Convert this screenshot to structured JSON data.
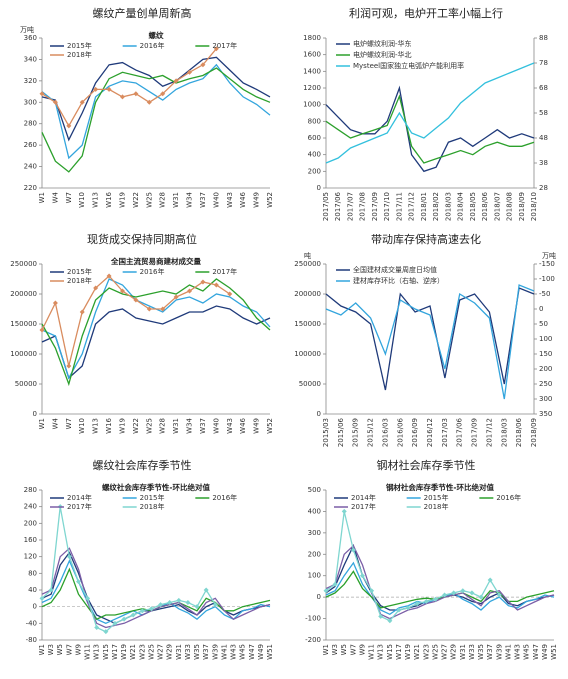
{
  "chart_data": [
    {
      "type": "line",
      "title": "螺纹产量创单周新高",
      "subtitle": "螺纹",
      "ylabel": "万吨",
      "legend": "upper center",
      "categories": [
        "W1",
        "W4",
        "W7",
        "W10",
        "W13",
        "W16",
        "W19",
        "W22",
        "W25",
        "W28",
        "W31",
        "W34",
        "W37",
        "W40",
        "W43",
        "W46",
        "W49",
        "W52"
      ],
      "ylim": [
        220,
        360
      ],
      "yticks": [
        220,
        240,
        260,
        280,
        300,
        320,
        340,
        360
      ],
      "series": [
        {
          "name": "2015年",
          "color": "#1f3a7a",
          "values": [
            305,
            302,
            265,
            290,
            318,
            335,
            337,
            330,
            325,
            315,
            320,
            330,
            340,
            342,
            330,
            318,
            312,
            305
          ]
        },
        {
          "name": "2016年",
          "color": "#33a5dd",
          "values": [
            310,
            300,
            248,
            260,
            305,
            315,
            320,
            318,
            310,
            302,
            312,
            318,
            322,
            335,
            318,
            305,
            298,
            288
          ]
        },
        {
          "name": "2017年",
          "color": "#2ca02c",
          "values": [
            272,
            245,
            235,
            250,
            300,
            322,
            328,
            325,
            322,
            325,
            318,
            322,
            325,
            332,
            322,
            312,
            305,
            300
          ]
        },
        {
          "name": "2018年",
          "color": "#d98c5f",
          "marker": "diamond",
          "values": [
            308,
            300,
            278,
            300,
            312,
            312,
            305,
            308,
            300,
            308,
            320,
            328,
            335,
            350,
            null,
            null,
            null,
            null
          ]
        }
      ]
    },
    {
      "type": "line",
      "title": "利润可观，电炉开工率小幅上行",
      "legend": "upper left",
      "categories": [
        "2017/05",
        "2017/06",
        "2017/07",
        "2017/08",
        "2017/09",
        "2017/10",
        "2017/11",
        "2017/12",
        "2018/01",
        "2018/02",
        "2018/03",
        "2018/04",
        "2018/05",
        "2018/06",
        "2018/07",
        "2018/08",
        "2018/09",
        "2018/10"
      ],
      "ylim": [
        0,
        1800
      ],
      "yticks": [
        0,
        200,
        400,
        600,
        800,
        1000,
        1200,
        1400,
        1600,
        1800
      ],
      "y2lim": [
        28,
        88
      ],
      "y2ticks": [
        28,
        38,
        48,
        58,
        68,
        78,
        88
      ],
      "series": [
        {
          "name": "电炉螺纹利润-华东",
          "color": "#1f3a7a",
          "values": [
            1000,
            850,
            700,
            650,
            650,
            800,
            1200,
            400,
            200,
            250,
            550,
            600,
            500,
            600,
            700,
            600,
            650,
            600
          ]
        },
        {
          "name": "电炉螺纹利润-华北",
          "color": "#2ca02c",
          "values": [
            800,
            700,
            600,
            650,
            700,
            750,
            1100,
            500,
            300,
            350,
            400,
            450,
            400,
            500,
            550,
            500,
            500,
            550
          ]
        },
        {
          "name": "Mysteel国家独立电弧炉产能利用率",
          "color": "#33c0dd",
          "axis": "y2",
          "values": [
            38,
            40,
            44,
            46,
            48,
            50,
            58,
            50,
            48,
            52,
            56,
            62,
            66,
            70,
            72,
            74,
            76,
            78
          ]
        }
      ]
    },
    {
      "type": "line",
      "title": "现货成交保持同期高位",
      "subtitle": "全国主流贸易商建材成交量",
      "legend": "upper center",
      "categories": [
        "W1",
        "W4",
        "W7",
        "W10",
        "W13",
        "W16",
        "W19",
        "W22",
        "W25",
        "W28",
        "W31",
        "W34",
        "W37",
        "W40",
        "W43",
        "W46",
        "W49",
        "W52"
      ],
      "ylim": [
        0,
        250000
      ],
      "yticks": [
        0,
        50000,
        100000,
        150000,
        200000,
        250000
      ],
      "series": [
        {
          "name": "2015年",
          "color": "#1f3a7a",
          "values": [
            120000,
            130000,
            60000,
            80000,
            150000,
            170000,
            175000,
            160000,
            155000,
            150000,
            160000,
            170000,
            170000,
            180000,
            175000,
            160000,
            150000,
            160000
          ]
        },
        {
          "name": "2016年",
          "color": "#33a5dd",
          "values": [
            140000,
            130000,
            60000,
            100000,
            170000,
            225000,
            215000,
            190000,
            180000,
            170000,
            190000,
            195000,
            185000,
            200000,
            195000,
            180000,
            170000,
            145000
          ]
        },
        {
          "name": "2017年",
          "color": "#2ca02c",
          "values": [
            150000,
            110000,
            50000,
            130000,
            190000,
            210000,
            200000,
            195000,
            200000,
            205000,
            200000,
            215000,
            205000,
            225000,
            210000,
            190000,
            160000,
            140000
          ]
        },
        {
          "name": "2018年",
          "color": "#d98c5f",
          "marker": "diamond",
          "values": [
            140000,
            185000,
            80000,
            170000,
            210000,
            230000,
            205000,
            190000,
            175000,
            175000,
            195000,
            205000,
            220000,
            215000,
            200000,
            null,
            null,
            null
          ]
        }
      ]
    },
    {
      "type": "line",
      "title": "带动库存保持高速去化",
      "ylabel": "吨",
      "y2label": "万吨",
      "legend": "upper left",
      "y2_reversed": true,
      "categories": [
        "2015/03",
        "2015/06",
        "2015/09",
        "2015/12",
        "2016/03",
        "2016/06",
        "2016/09",
        "2016/12",
        "2017/03",
        "2017/06",
        "2017/09",
        "2017/12",
        "2018/03",
        "2018/06",
        "2018/09"
      ],
      "ylim": [
        0,
        250000
      ],
      "yticks": [
        0,
        50000,
        100000,
        150000,
        200000,
        250000
      ],
      "y2lim": [
        -150,
        350
      ],
      "y2ticks": [
        -150,
        -100,
        -50,
        0,
        50,
        100,
        150,
        200,
        250,
        300,
        350
      ],
      "series": [
        {
          "name": "全国建材成交量周度日均值",
          "color": "#1f3a7a",
          "values": [
            200000,
            180000,
            170000,
            150000,
            40000,
            200000,
            170000,
            180000,
            60000,
            190000,
            200000,
            170000,
            50000,
            210000,
            200000
          ]
        },
        {
          "name": "建材库存环比（右轴、逆序）",
          "color": "#33a5dd",
          "axis": "y2",
          "values": [
            0,
            20,
            -20,
            30,
            150,
            -30,
            0,
            20,
            200,
            -50,
            -20,
            30,
            300,
            -80,
            -60
          ]
        }
      ]
    },
    {
      "type": "line",
      "title": "螺纹社会库存季节性",
      "subtitle": "螺纹社会库存季节性-环比绝对值",
      "legend": "upper center",
      "categories": [
        "W1",
        "W3",
        "W5",
        "W7",
        "W9",
        "W11",
        "W13",
        "W15",
        "W17",
        "W19",
        "W21",
        "W23",
        "W25",
        "W27",
        "W29",
        "W31",
        "W33",
        "W35",
        "W37",
        "W39",
        "W41",
        "W43",
        "W45",
        "W47",
        "W49",
        "W51"
      ],
      "ylim": [
        -80,
        280
      ],
      "yticks": [
        -80,
        -40,
        0,
        40,
        80,
        120,
        160,
        200,
        240,
        280
      ],
      "series": [
        {
          "name": "2014年",
          "color": "#1f3a7a",
          "values": [
            20,
            30,
            100,
            130,
            80,
            20,
            -20,
            -30,
            -40,
            -30,
            -20,
            -10,
            -10,
            -5,
            0,
            5,
            -10,
            -20,
            0,
            10,
            -10,
            -20,
            -10,
            -5,
            0,
            5
          ]
        },
        {
          "name": "2015年",
          "color": "#33a5dd",
          "values": [
            10,
            20,
            60,
            110,
            60,
            10,
            -30,
            -40,
            -30,
            -20,
            -10,
            -20,
            -10,
            0,
            10,
            -5,
            -15,
            -30,
            -10,
            0,
            -20,
            -30,
            -10,
            -5,
            5,
            0
          ]
        },
        {
          "name": "2016年",
          "color": "#2ca02c",
          "values": [
            0,
            10,
            40,
            90,
            30,
            0,
            -30,
            -20,
            -20,
            -15,
            -10,
            -5,
            -10,
            0,
            5,
            10,
            0,
            -10,
            20,
            10,
            -10,
            -10,
            0,
            5,
            10,
            15
          ]
        },
        {
          "name": "2017年",
          "color": "#7b5ea7",
          "values": [
            30,
            40,
            120,
            140,
            90,
            10,
            -40,
            -50,
            -45,
            -40,
            -30,
            -20,
            -10,
            0,
            5,
            10,
            -5,
            -20,
            10,
            20,
            -10,
            -30,
            -20,
            -10,
            0,
            5
          ]
        },
        {
          "name": "2018年",
          "color": "#7fd6d0",
          "marker": "diamond",
          "values": [
            20,
            40,
            240,
            120,
            60,
            20,
            -50,
            -60,
            -40,
            -30,
            -20,
            -10,
            -5,
            5,
            10,
            15,
            10,
            0,
            40,
            5,
            null,
            null,
            null,
            null,
            null,
            null
          ]
        }
      ]
    },
    {
      "type": "line",
      "title": "钢材社会库存季节性",
      "subtitle": "钢材社会库存季节性-环比绝对值",
      "legend": "upper center",
      "categories": [
        "W1",
        "W3",
        "W5",
        "W7",
        "W9",
        "W11",
        "W13",
        "W15",
        "W17",
        "W19",
        "W21",
        "W23",
        "W25",
        "W27",
        "W29",
        "W31",
        "W33",
        "W35",
        "W37",
        "W39",
        "W41",
        "W43",
        "W45",
        "W47",
        "W49",
        "W51"
      ],
      "ylim": [
        -200,
        500
      ],
      "yticks": [
        -200,
        -100,
        0,
        100,
        200,
        300,
        400,
        500
      ],
      "series": [
        {
          "name": "2014年",
          "color": "#1f3a7a",
          "values": [
            20,
            50,
            150,
            240,
            100,
            20,
            -40,
            -60,
            -60,
            -50,
            -40,
            -20,
            -10,
            0,
            10,
            0,
            -20,
            -30,
            0,
            20,
            -30,
            -40,
            -20,
            -10,
            0,
            10
          ]
        },
        {
          "name": "2015年",
          "color": "#33a5dd",
          "values": [
            10,
            30,
            100,
            160,
            60,
            0,
            -60,
            -80,
            -50,
            -40,
            -20,
            -30,
            -10,
            0,
            20,
            -10,
            -30,
            -60,
            -20,
            0,
            -40,
            -50,
            -20,
            -10,
            10,
            0
          ]
        },
        {
          "name": "2016年",
          "color": "#2ca02c",
          "values": [
            0,
            20,
            60,
            120,
            40,
            0,
            -50,
            -40,
            -30,
            -20,
            -10,
            -5,
            -10,
            0,
            10,
            20,
            0,
            -20,
            30,
            20,
            -20,
            -20,
            0,
            10,
            20,
            30
          ]
        },
        {
          "name": "2017年",
          "color": "#7b5ea7",
          "values": [
            40,
            60,
            200,
            240,
            150,
            20,
            -80,
            -100,
            -80,
            -60,
            -50,
            -30,
            -20,
            0,
            10,
            20,
            -10,
            -40,
            20,
            30,
            -20,
            -60,
            -40,
            -20,
            0,
            10
          ]
        },
        {
          "name": "2018年",
          "color": "#7fd6d0",
          "marker": "diamond",
          "values": [
            30,
            60,
            400,
            220,
            100,
            30,
            -90,
            -110,
            -60,
            -50,
            -30,
            -20,
            -10,
            10,
            20,
            30,
            20,
            0,
            80,
            10,
            null,
            null,
            null,
            null,
            null,
            null
          ]
        }
      ]
    }
  ]
}
